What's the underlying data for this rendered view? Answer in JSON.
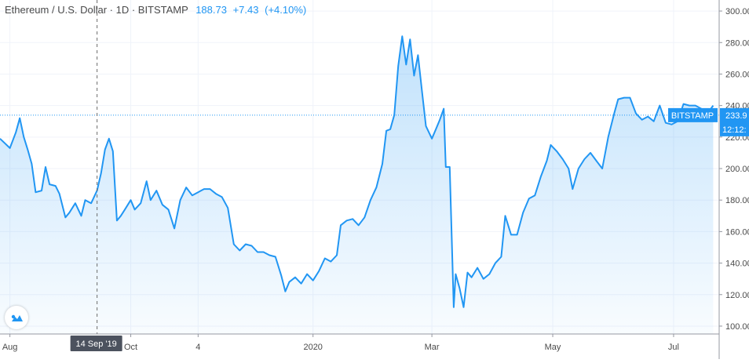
{
  "chart_data": {
    "type": "area",
    "title": "Ethereum / U.S. Dollar · 1D · BITSTAMP",
    "symbol": "Ethereum / U.S. Dollar",
    "interval": "1D",
    "exchange": "BITSTAMP",
    "last_price": "188.73",
    "change_abs": "+7.43",
    "change_pct": "(+4.10%)",
    "price_label": "BITSTAMP",
    "current_price_value": 233.9,
    "current_price_text": "233.9",
    "countdown_text": "12:12:",
    "crosshair_date_label": "14 Sep '19",
    "crosshair_date": "2019-09-14",
    "x_tick_labels": [
      {
        "label": "Aug",
        "date": "2019-08-01"
      },
      {
        "label": "Oct",
        "date": "2019-10-01"
      },
      {
        "label": "4",
        "date": "2019-11-04"
      },
      {
        "label": "2020",
        "date": "2020-01-01"
      },
      {
        "label": "Mar",
        "date": "2020-03-01"
      },
      {
        "label": "May",
        "date": "2020-05-01"
      },
      {
        "label": "Jul",
        "date": "2020-07-01"
      }
    ],
    "y_ticks": [
      100,
      120,
      140,
      160,
      180,
      200,
      220,
      240,
      260,
      280,
      300
    ],
    "y_tick_labels": [
      "100.00",
      "120.00",
      "140.00",
      "160.00",
      "180.00",
      "200.00",
      "220.00",
      "240.00",
      "260.00",
      "280.00",
      "300.00"
    ],
    "ylim": [
      95,
      307
    ],
    "xlim": [
      "2019-07-27",
      "2020-07-24"
    ],
    "line_color": "#2196f3",
    "fill_color": "#2196f3",
    "grid": true,
    "series": [
      {
        "values": [
          {
            "x": "2019-07-27",
            "y": 219
          },
          {
            "x": "2019-08-01",
            "y": 213
          },
          {
            "x": "2019-08-04",
            "y": 223
          },
          {
            "x": "2019-08-06",
            "y": 232
          },
          {
            "x": "2019-08-08",
            "y": 220
          },
          {
            "x": "2019-08-10",
            "y": 212
          },
          {
            "x": "2019-08-12",
            "y": 203
          },
          {
            "x": "2019-08-14",
            "y": 185
          },
          {
            "x": "2019-08-17",
            "y": 186
          },
          {
            "x": "2019-08-19",
            "y": 201
          },
          {
            "x": "2019-08-21",
            "y": 190
          },
          {
            "x": "2019-08-24",
            "y": 189
          },
          {
            "x": "2019-08-26",
            "y": 184
          },
          {
            "x": "2019-08-29",
            "y": 169
          },
          {
            "x": "2019-08-31",
            "y": 172
          },
          {
            "x": "2019-09-03",
            "y": 178
          },
          {
            "x": "2019-09-06",
            "y": 170
          },
          {
            "x": "2019-09-08",
            "y": 180
          },
          {
            "x": "2019-09-11",
            "y": 178
          },
          {
            "x": "2019-09-14",
            "y": 186
          },
          {
            "x": "2019-09-16",
            "y": 197
          },
          {
            "x": "2019-09-18",
            "y": 212
          },
          {
            "x": "2019-09-20",
            "y": 219
          },
          {
            "x": "2019-09-22",
            "y": 211
          },
          {
            "x": "2019-09-24",
            "y": 167
          },
          {
            "x": "2019-09-26",
            "y": 170
          },
          {
            "x": "2019-09-28",
            "y": 174
          },
          {
            "x": "2019-10-01",
            "y": 180
          },
          {
            "x": "2019-10-03",
            "y": 174
          },
          {
            "x": "2019-10-06",
            "y": 178
          },
          {
            "x": "2019-10-09",
            "y": 192
          },
          {
            "x": "2019-10-11",
            "y": 180
          },
          {
            "x": "2019-10-14",
            "y": 186
          },
          {
            "x": "2019-10-17",
            "y": 177
          },
          {
            "x": "2019-10-20",
            "y": 174
          },
          {
            "x": "2019-10-23",
            "y": 162
          },
          {
            "x": "2019-10-26",
            "y": 180
          },
          {
            "x": "2019-10-29",
            "y": 188
          },
          {
            "x": "2019-11-01",
            "y": 183
          },
          {
            "x": "2019-11-04",
            "y": 185
          },
          {
            "x": "2019-11-07",
            "y": 187
          },
          {
            "x": "2019-11-10",
            "y": 187
          },
          {
            "x": "2019-11-13",
            "y": 184
          },
          {
            "x": "2019-11-16",
            "y": 182
          },
          {
            "x": "2019-11-19",
            "y": 175
          },
          {
            "x": "2019-11-22",
            "y": 152
          },
          {
            "x": "2019-11-25",
            "y": 148
          },
          {
            "x": "2019-11-28",
            "y": 152
          },
          {
            "x": "2019-12-01",
            "y": 151
          },
          {
            "x": "2019-12-04",
            "y": 147
          },
          {
            "x": "2019-12-07",
            "y": 147
          },
          {
            "x": "2019-12-10",
            "y": 145
          },
          {
            "x": "2019-12-13",
            "y": 144
          },
          {
            "x": "2019-12-16",
            "y": 132
          },
          {
            "x": "2019-12-18",
            "y": 122
          },
          {
            "x": "2019-12-20",
            "y": 128
          },
          {
            "x": "2019-12-23",
            "y": 131
          },
          {
            "x": "2019-12-26",
            "y": 127
          },
          {
            "x": "2019-12-29",
            "y": 133
          },
          {
            "x": "2020-01-01",
            "y": 129
          },
          {
            "x": "2020-01-04",
            "y": 135
          },
          {
            "x": "2020-01-07",
            "y": 143
          },
          {
            "x": "2020-01-10",
            "y": 141
          },
          {
            "x": "2020-01-13",
            "y": 145
          },
          {
            "x": "2020-01-15",
            "y": 164
          },
          {
            "x": "2020-01-18",
            "y": 167
          },
          {
            "x": "2020-01-21",
            "y": 168
          },
          {
            "x": "2020-01-24",
            "y": 164
          },
          {
            "x": "2020-01-27",
            "y": 169
          },
          {
            "x": "2020-01-30",
            "y": 180
          },
          {
            "x": "2020-02-02",
            "y": 188
          },
          {
            "x": "2020-02-05",
            "y": 203
          },
          {
            "x": "2020-02-07",
            "y": 224
          },
          {
            "x": "2020-02-09",
            "y": 225
          },
          {
            "x": "2020-02-11",
            "y": 234
          },
          {
            "x": "2020-02-13",
            "y": 265
          },
          {
            "x": "2020-02-15",
            "y": 284
          },
          {
            "x": "2020-02-17",
            "y": 266
          },
          {
            "x": "2020-02-19",
            "y": 282
          },
          {
            "x": "2020-02-21",
            "y": 259
          },
          {
            "x": "2020-02-23",
            "y": 272
          },
          {
            "x": "2020-02-25",
            "y": 249
          },
          {
            "x": "2020-02-27",
            "y": 227
          },
          {
            "x": "2020-03-01",
            "y": 219
          },
          {
            "x": "2020-03-03",
            "y": 225
          },
          {
            "x": "2020-03-05",
            "y": 231
          },
          {
            "x": "2020-03-07",
            "y": 238
          },
          {
            "x": "2020-03-08",
            "y": 201
          },
          {
            "x": "2020-03-10",
            "y": 201
          },
          {
            "x": "2020-03-12",
            "y": 112
          },
          {
            "x": "2020-03-13",
            "y": 133
          },
          {
            "x": "2020-03-15",
            "y": 124
          },
          {
            "x": "2020-03-17",
            "y": 112
          },
          {
            "x": "2020-03-19",
            "y": 134
          },
          {
            "x": "2020-03-21",
            "y": 131
          },
          {
            "x": "2020-03-24",
            "y": 137
          },
          {
            "x": "2020-03-27",
            "y": 130
          },
          {
            "x": "2020-03-30",
            "y": 133
          },
          {
            "x": "2020-04-02",
            "y": 140
          },
          {
            "x": "2020-04-05",
            "y": 144
          },
          {
            "x": "2020-04-07",
            "y": 170
          },
          {
            "x": "2020-04-10",
            "y": 158
          },
          {
            "x": "2020-04-13",
            "y": 158
          },
          {
            "x": "2020-04-16",
            "y": 172
          },
          {
            "x": "2020-04-19",
            "y": 181
          },
          {
            "x": "2020-04-22",
            "y": 183
          },
          {
            "x": "2020-04-25",
            "y": 195
          },
          {
            "x": "2020-04-28",
            "y": 205
          },
          {
            "x": "2020-04-30",
            "y": 215
          },
          {
            "x": "2020-05-03",
            "y": 211
          },
          {
            "x": "2020-05-06",
            "y": 206
          },
          {
            "x": "2020-05-09",
            "y": 200
          },
          {
            "x": "2020-05-11",
            "y": 187
          },
          {
            "x": "2020-05-14",
            "y": 200
          },
          {
            "x": "2020-05-17",
            "y": 206
          },
          {
            "x": "2020-05-20",
            "y": 210
          },
          {
            "x": "2020-05-23",
            "y": 205
          },
          {
            "x": "2020-05-26",
            "y": 200
          },
          {
            "x": "2020-05-29",
            "y": 220
          },
          {
            "x": "2020-06-01",
            "y": 235
          },
          {
            "x": "2020-06-03",
            "y": 244
          },
          {
            "x": "2020-06-06",
            "y": 245
          },
          {
            "x": "2020-06-09",
            "y": 245
          },
          {
            "x": "2020-06-12",
            "y": 235
          },
          {
            "x": "2020-06-15",
            "y": 231
          },
          {
            "x": "2020-06-18",
            "y": 233
          },
          {
            "x": "2020-06-21",
            "y": 230
          },
          {
            "x": "2020-06-24",
            "y": 240
          },
          {
            "x": "2020-06-27",
            "y": 229
          },
          {
            "x": "2020-06-30",
            "y": 228
          },
          {
            "x": "2020-07-03",
            "y": 230
          },
          {
            "x": "2020-07-06",
            "y": 241
          },
          {
            "x": "2020-07-09",
            "y": 240
          },
          {
            "x": "2020-07-12",
            "y": 240
          },
          {
            "x": "2020-07-15",
            "y": 238
          },
          {
            "x": "2020-07-18",
            "y": 235
          },
          {
            "x": "2020-07-21",
            "y": 240
          }
        ]
      }
    ]
  }
}
